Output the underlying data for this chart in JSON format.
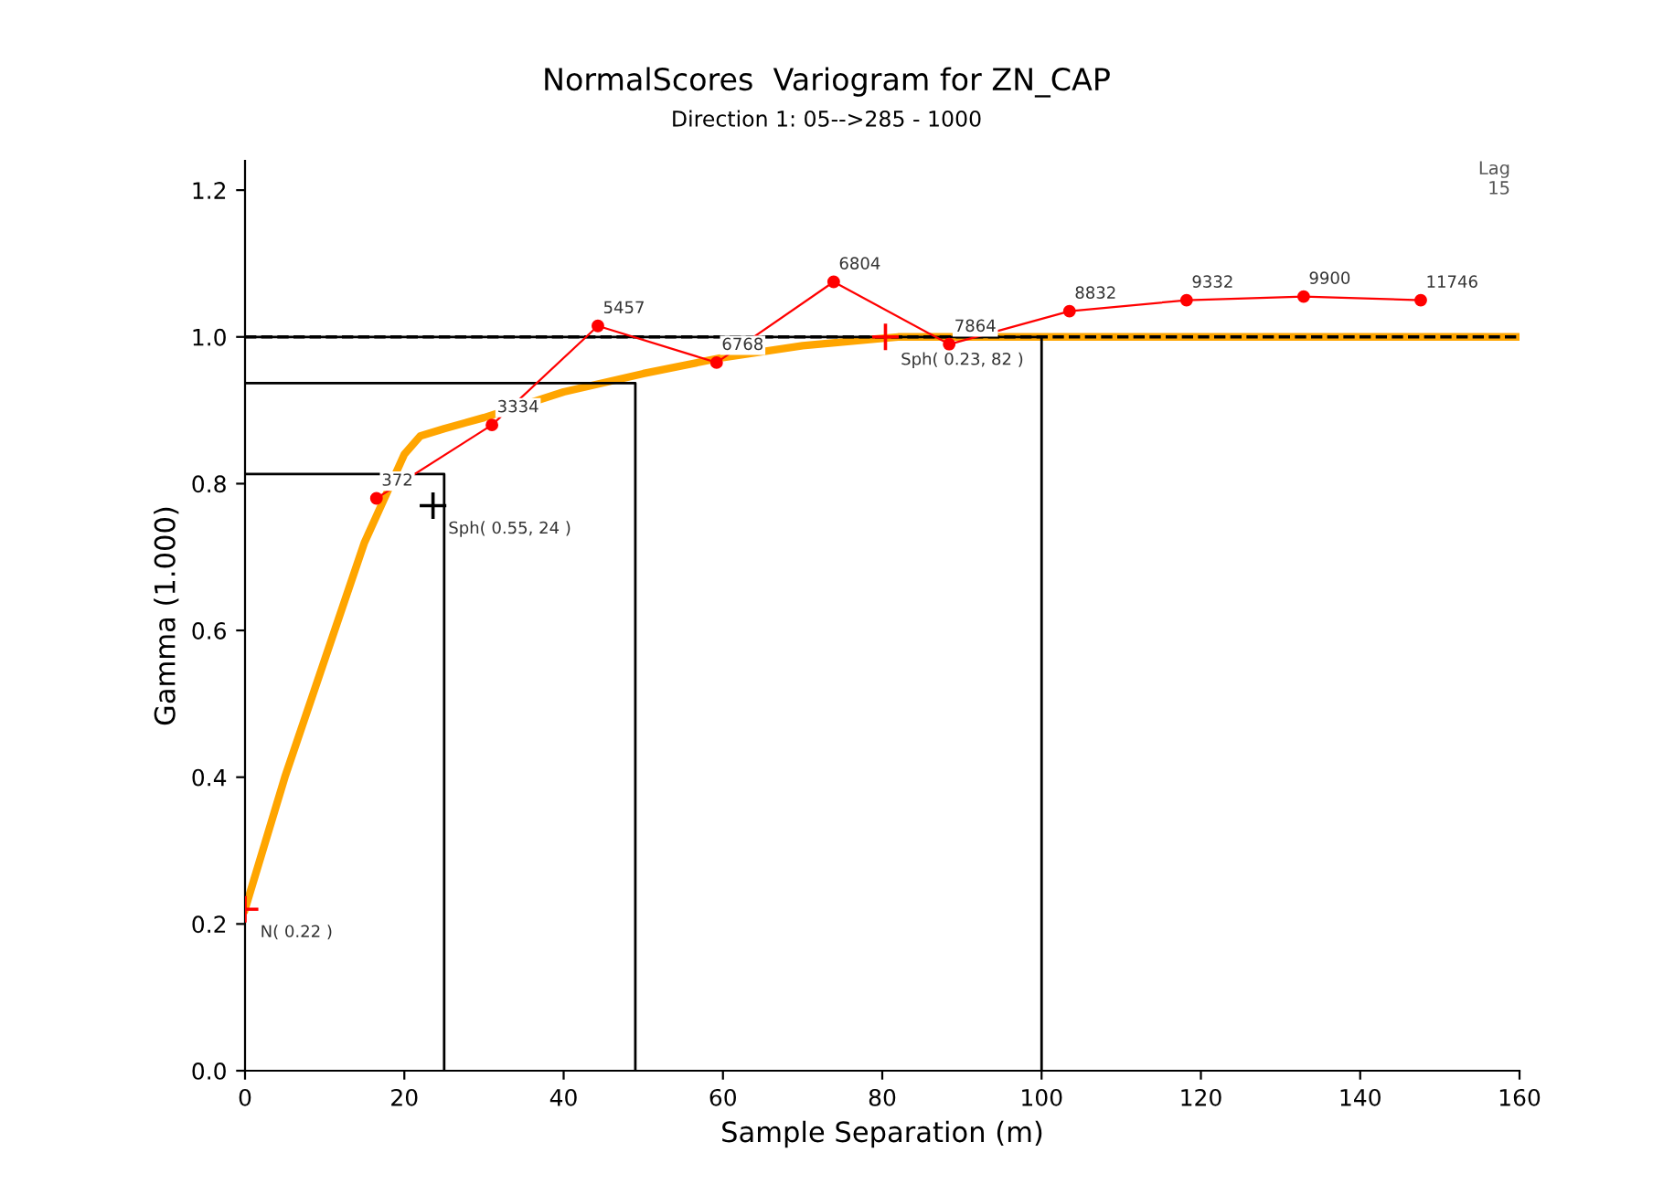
{
  "chart_data": {
    "type": "line",
    "title": "NormalScores  Variogram for ZN_CAP",
    "subtitle": "Direction 1: 05-->285 - 1000",
    "xlabel": "Sample Separation (m)",
    "ylabel": "Gamma (1.000)",
    "xlim": [
      0,
      160
    ],
    "ylim": [
      0,
      1.24
    ],
    "xticks": [
      0,
      20,
      40,
      60,
      80,
      100,
      120,
      140,
      160
    ],
    "yticks": [
      {
        "value": 0,
        "label": "0.0"
      },
      {
        "value": 0.2,
        "label": "0.2"
      },
      {
        "value": 0.4,
        "label": "0.4"
      },
      {
        "value": 0.6,
        "label": "0.6"
      },
      {
        "value": 0.8,
        "label": "0.8"
      },
      {
        "value": 1.0,
        "label": "1.0"
      },
      {
        "value": 1.2,
        "label": "1.2"
      }
    ],
    "grid": false,
    "legend": false,
    "series": [
      {
        "color": "#ff0000",
        "marker": "circle",
        "x": [
          16.5,
          31.0,
          44.3,
          59.2,
          73.9,
          88.4,
          103.5,
          118.2,
          132.9,
          147.6
        ],
        "values": [
          0.78,
          0.88,
          1.015,
          0.965,
          1.075,
          0.99,
          1.035,
          1.05,
          1.055,
          1.05
        ]
      },
      {
        "color": "#ffa500",
        "marker": "none",
        "x": [
          0,
          5,
          10,
          15,
          20,
          22,
          25,
          30,
          40,
          50,
          60,
          70,
          80,
          82,
          160
        ],
        "values": [
          0.22,
          0.4,
          0.56,
          0.72,
          0.84,
          0.865,
          0.875,
          0.89,
          0.925,
          0.95,
          0.972,
          0.988,
          0.998,
          1.0,
          1.0
        ]
      },
      {
        "color": "#000000",
        "marker": "none",
        "x": [
          0,
          25,
          25
        ],
        "values": [
          0.813,
          0.813,
          0
        ]
      },
      {
        "color": "#000000",
        "marker": "none",
        "x": [
          0,
          49,
          49
        ],
        "values": [
          0.937,
          0.937,
          0
        ]
      },
      {
        "color": "#000000",
        "marker": "none",
        "x": [
          0,
          100,
          100
        ],
        "values": [
          1.0,
          1.0,
          0
        ]
      },
      {
        "type": "scatter",
        "marker": "cross",
        "x": [
          0,
          23.6,
          80.4
        ],
        "values": [
          0.22,
          0.77,
          1.0
        ],
        "colors": [
          "#ff0000",
          "#000000",
          "#ff0000"
        ]
      }
    ],
    "ref_lines": [
      {
        "axis": "y",
        "value": 1.0,
        "color": "#000000",
        "line_style": "dashed"
      }
    ],
    "annotations": [
      {
        "text": "372",
        "x": 16.5,
        "y": 0.78
      },
      {
        "text": "3334",
        "x": 31.0,
        "y": 0.88
      },
      {
        "text": "5457",
        "x": 44.3,
        "y": 1.015
      },
      {
        "text": "6768",
        "x": 59.2,
        "y": 0.965
      },
      {
        "text": "6804",
        "x": 73.9,
        "y": 1.075
      },
      {
        "text": "7864",
        "x": 88.4,
        "y": 0.99
      },
      {
        "text": "8832",
        "x": 103.5,
        "y": 1.035
      },
      {
        "text": "9332",
        "x": 118.2,
        "y": 1.05
      },
      {
        "text": "9900",
        "x": 132.9,
        "y": 1.055
      },
      {
        "text": "11746",
        "x": 147.6,
        "y": 1.05
      },
      {
        "text": "N( 0.22 )",
        "x": 0,
        "y": 0.22
      },
      {
        "text": "Sph( 0.55, 24 )",
        "x": 23.6,
        "y": 0.77
      },
      {
        "text": "Sph( 0.23, 82 )",
        "x": 80.4,
        "y": 1.0
      },
      "Lag\n15"
    ]
  }
}
